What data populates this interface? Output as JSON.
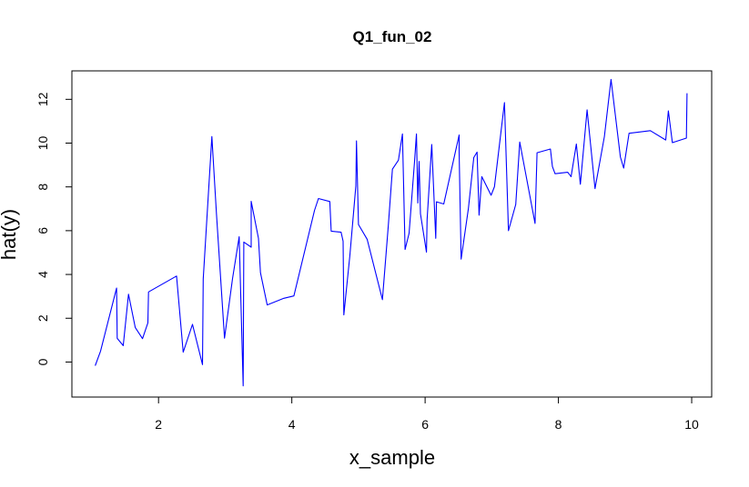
{
  "chart_data": {
    "type": "line",
    "title": "Q1_fun_02",
    "xlabel": "x_sample",
    "ylabel": "hat(y)",
    "xlim": [
      0.7,
      10.3
    ],
    "ylim": [
      -1.6,
      13.3
    ],
    "x_ticks": [
      "2",
      "4",
      "6",
      "8",
      "10"
    ],
    "y_ticks": [
      "0",
      "2",
      "4",
      "6",
      "8",
      "10",
      "12"
    ],
    "grid": false,
    "legend": "none",
    "colors": {
      "line": "#0000ff",
      "axes": "#000000",
      "background": "#ffffff"
    },
    "series": [
      {
        "x": [
          1.05,
          1.13,
          1.37,
          1.38,
          1.47,
          1.55,
          1.65,
          1.76,
          1.84,
          1.85,
          2.27,
          2.37,
          2.51,
          2.66,
          2.67,
          2.8,
          2.87,
          2.99,
          3.11,
          3.21,
          3.27,
          3.28,
          3.39,
          3.39,
          3.5,
          3.53,
          3.63,
          3.88,
          4.03,
          4.34,
          4.4,
          4.57,
          4.59,
          4.74,
          4.77,
          4.78,
          4.87,
          4.96,
          4.97,
          5.0,
          5.13,
          5.36,
          5.45,
          5.49,
          5.51,
          5.6,
          5.66,
          5.7,
          5.76,
          5.84,
          5.87,
          5.89,
          5.91,
          5.93,
          6.02,
          6.03,
          6.1,
          6.16,
          6.17,
          6.28,
          6.51,
          6.51,
          6.54,
          6.65,
          6.73,
          6.78,
          6.81,
          6.85,
          6.99,
          7.04,
          7.19,
          7.25,
          7.36,
          7.42,
          7.65,
          7.68,
          7.88,
          7.91,
          7.95,
          8.14,
          8.19,
          8.27,
          8.33,
          8.43,
          8.55,
          8.69,
          8.79,
          8.93,
          8.98,
          9.06,
          9.38,
          9.61,
          9.65,
          9.71,
          9.92,
          9.93
        ],
        "y": [
          -0.17,
          0.5,
          3.38,
          1.08,
          0.75,
          3.1,
          1.58,
          1.07,
          1.79,
          3.2,
          3.93,
          0.45,
          1.72,
          -0.12,
          3.79,
          10.3,
          6.74,
          1.09,
          3.81,
          5.72,
          -1.09,
          5.48,
          5.25,
          7.34,
          5.65,
          4.08,
          2.61,
          2.91,
          3.02,
          6.93,
          7.47,
          7.33,
          5.98,
          5.93,
          5.52,
          2.15,
          4.85,
          8.04,
          10.1,
          6.28,
          5.61,
          2.85,
          6.3,
          8.02,
          8.81,
          9.22,
          10.42,
          5.14,
          5.88,
          9.11,
          10.42,
          7.26,
          9.16,
          6.77,
          5.02,
          6.51,
          9.94,
          5.65,
          7.32,
          7.22,
          10.37,
          9.57,
          4.7,
          7.02,
          9.34,
          9.59,
          6.71,
          8.47,
          7.62,
          8.01,
          11.85,
          6.0,
          7.2,
          10.05,
          6.33,
          9.56,
          9.73,
          8.93,
          8.6,
          8.67,
          8.47,
          9.96,
          8.12,
          11.52,
          7.92,
          10.3,
          12.91,
          9.36,
          8.86,
          10.45,
          10.57,
          10.14,
          11.47,
          10.02,
          10.23,
          12.28
        ]
      }
    ]
  }
}
